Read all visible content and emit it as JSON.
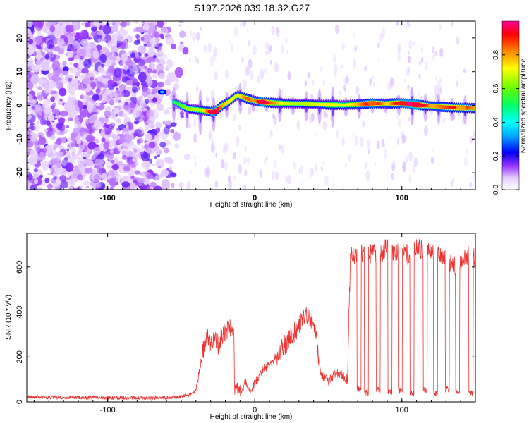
{
  "title": "S197.2026.039.18.32.G27",
  "chart_data": [
    {
      "type": "heatmap",
      "title": "S197.2026.039.18.32.G27",
      "xlabel": "Height of straight line (km)",
      "ylabel": "Frequency (Hz)",
      "xlim": [
        -155,
        150
      ],
      "ylim": [
        -25,
        25
      ],
      "xticks": [
        -100,
        0,
        100
      ],
      "yticks": [
        20,
        10,
        0,
        -10,
        -20
      ],
      "colorbar": {
        "label": "Normalized spectral amplitude",
        "range": [
          0,
          1
        ],
        "ticks": [
          "0.0",
          "0.2",
          "0.4",
          "0.6",
          "0.8"
        ]
      },
      "noise_region_x": [
        -155,
        -45
      ],
      "ridge": {
        "x": [
          -55,
          -45,
          -35,
          -28,
          -22,
          -18,
          -12,
          -5,
          0,
          5,
          10,
          20,
          30,
          40,
          50,
          60,
          70,
          80,
          90,
          100,
          110,
          120,
          130,
          140,
          150
        ],
        "freq": [
          1,
          -1,
          -1.5,
          -2,
          0,
          1,
          3,
          2,
          1.3,
          1,
          0.8,
          0.6,
          0.5,
          0.4,
          0.2,
          0.1,
          0.3,
          0.6,
          0.5,
          0.7,
          0.2,
          -0.2,
          -0.5,
          -0.7,
          -0.8
        ],
        "amplitude": [
          0.3,
          0.45,
          0.5,
          0.95,
          0.6,
          0.55,
          0.5,
          0.7,
          0.6,
          0.95,
          0.7,
          0.5,
          0.45,
          0.5,
          0.55,
          0.5,
          0.6,
          0.85,
          0.55,
          0.9,
          0.95,
          0.6,
          0.7,
          0.8,
          0.6
        ]
      }
    },
    {
      "type": "line",
      "xlabel": "Height of straight line (km)",
      "ylabel": "SNR (10 * v/v)",
      "xlim": [
        -155,
        150
      ],
      "ylim": [
        0,
        750
      ],
      "xticks": [
        -100,
        0,
        100
      ],
      "yticks": [
        0,
        200,
        400,
        600
      ],
      "series": [
        {
          "name": "SNR",
          "color": "#ee3333",
          "x": [
            -155,
            -130,
            -100,
            -75,
            -55,
            -45,
            -40,
            -35,
            -33,
            -30,
            -27,
            -25,
            -22,
            -18,
            -15,
            -12,
            -10,
            -6,
            -3,
            0,
            5,
            10,
            15,
            20,
            25,
            30,
            35,
            40,
            45,
            50,
            55,
            60,
            63,
            65,
            70,
            75,
            80,
            85,
            90,
            95,
            100,
            105,
            110,
            115,
            120,
            125,
            130,
            135,
            140,
            145,
            150
          ],
          "values": [
            22,
            20,
            18,
            18,
            20,
            30,
            50,
            230,
            290,
            260,
            290,
            250,
            300,
            320,
            330,
            60,
            30,
            90,
            40,
            80,
            140,
            170,
            200,
            250,
            290,
            340,
            390,
            360,
            120,
            90,
            125,
            120,
            100,
            640,
            670,
            650,
            660,
            655,
            690,
            660,
            700,
            640,
            690,
            670,
            660,
            650,
            640,
            600,
            620,
            650,
            640
          ]
        }
      ],
      "dropouts": [
        {
          "x": 71,
          "value": 60
        },
        {
          "x": 76,
          "value": 40
        },
        {
          "x": 84,
          "value": 55
        },
        {
          "x": 92,
          "value": 45
        },
        {
          "x": 99,
          "value": 50
        },
        {
          "x": 107,
          "value": 40
        },
        {
          "x": 116,
          "value": 50
        },
        {
          "x": 123,
          "value": 40
        },
        {
          "x": 131,
          "value": 55
        },
        {
          "x": 138,
          "value": 45
        },
        {
          "x": 147,
          "value": 40
        }
      ]
    }
  ],
  "colors": {
    "accent": "#ee3333",
    "noise": "#8844ee"
  }
}
